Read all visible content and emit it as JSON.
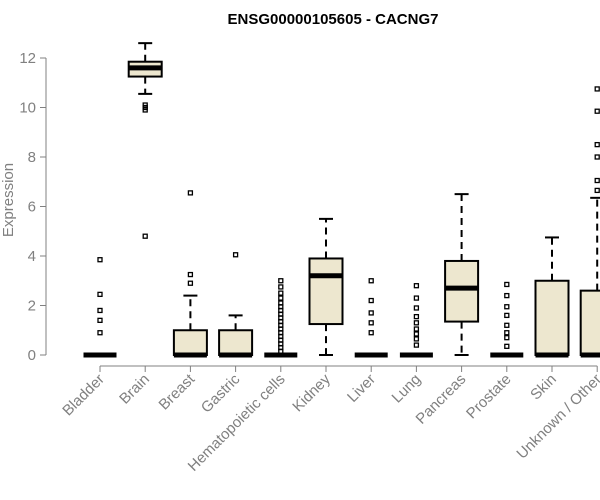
{
  "chart_data": {
    "type": "boxplot",
    "title": "ENSG00000105605 - CACNG7",
    "xlabel": "",
    "ylabel": "Expression",
    "ylim": [
      0,
      12.5
    ],
    "yticks": [
      0,
      2,
      4,
      6,
      8,
      10,
      12
    ],
    "box_fill": "#ede7cf",
    "categories": [
      "Bladder",
      "Brain",
      "Breast",
      "Gastric",
      "Hematopoietic cells",
      "Kidney",
      "Liver",
      "Lung",
      "Pancreas",
      "Prostate",
      "Skin",
      "Unknown / Other"
    ],
    "boxes": [
      {
        "q1": 0,
        "median": 0,
        "q3": 0,
        "whisker_low": 0,
        "whisker_high": 0,
        "outliers": [
          0.9,
          1.4,
          1.8,
          2.45,
          3.85
        ]
      },
      {
        "q1": 11.25,
        "median": 11.6,
        "q3": 11.85,
        "whisker_low": 10.55,
        "whisker_high": 12.6,
        "outliers": [
          10.1,
          10.0,
          9.9,
          4.8
        ]
      },
      {
        "q1": 0,
        "median": 0,
        "q3": 1.0,
        "whisker_low": 0,
        "whisker_high": 2.4,
        "outliers": [
          2.9,
          3.25,
          6.55
        ]
      },
      {
        "q1": 0,
        "median": 0,
        "q3": 1.0,
        "whisker_low": 0,
        "whisker_high": 1.6,
        "outliers": [
          4.05
        ]
      },
      {
        "q1": 0,
        "median": 0,
        "q3": 0,
        "whisker_low": 0,
        "whisker_high": 0,
        "outliers": [
          0.15,
          0.3,
          0.45,
          0.6,
          0.75,
          0.9,
          1.05,
          1.2,
          1.35,
          1.5,
          1.65,
          1.8,
          1.95,
          2.1,
          2.3,
          2.5,
          2.75,
          3.0
        ]
      },
      {
        "q1": 1.25,
        "median": 3.2,
        "q3": 3.9,
        "whisker_low": 0,
        "whisker_high": 5.5,
        "outliers": []
      },
      {
        "q1": 0,
        "median": 0,
        "q3": 0,
        "whisker_low": 0,
        "whisker_high": 0,
        "outliers": [
          0.9,
          1.3,
          1.7,
          2.2,
          3.0
        ]
      },
      {
        "q1": 0,
        "median": 0,
        "q3": 0,
        "whisker_low": 0,
        "whisker_high": 0,
        "outliers": [
          0.4,
          0.65,
          0.85,
          1.05,
          1.3,
          1.55,
          1.9,
          2.3,
          2.8
        ]
      },
      {
        "q1": 1.35,
        "median": 2.7,
        "q3": 3.8,
        "whisker_low": 0,
        "whisker_high": 6.5,
        "outliers": []
      },
      {
        "q1": 0,
        "median": 0,
        "q3": 0,
        "whisker_low": 0,
        "whisker_high": 0,
        "outliers": [
          0.35,
          0.7,
          0.9,
          1.2,
          1.6,
          1.95,
          2.4,
          2.85
        ]
      },
      {
        "q1": 0,
        "median": 0,
        "q3": 3.0,
        "whisker_low": 0,
        "whisker_high": 4.75,
        "outliers": []
      },
      {
        "q1": 0,
        "median": 0,
        "q3": 2.6,
        "whisker_low": 0,
        "whisker_high": 6.35,
        "outliers": [
          6.65,
          7.05,
          8.0,
          8.5,
          9.85,
          10.75
        ]
      }
    ]
  }
}
